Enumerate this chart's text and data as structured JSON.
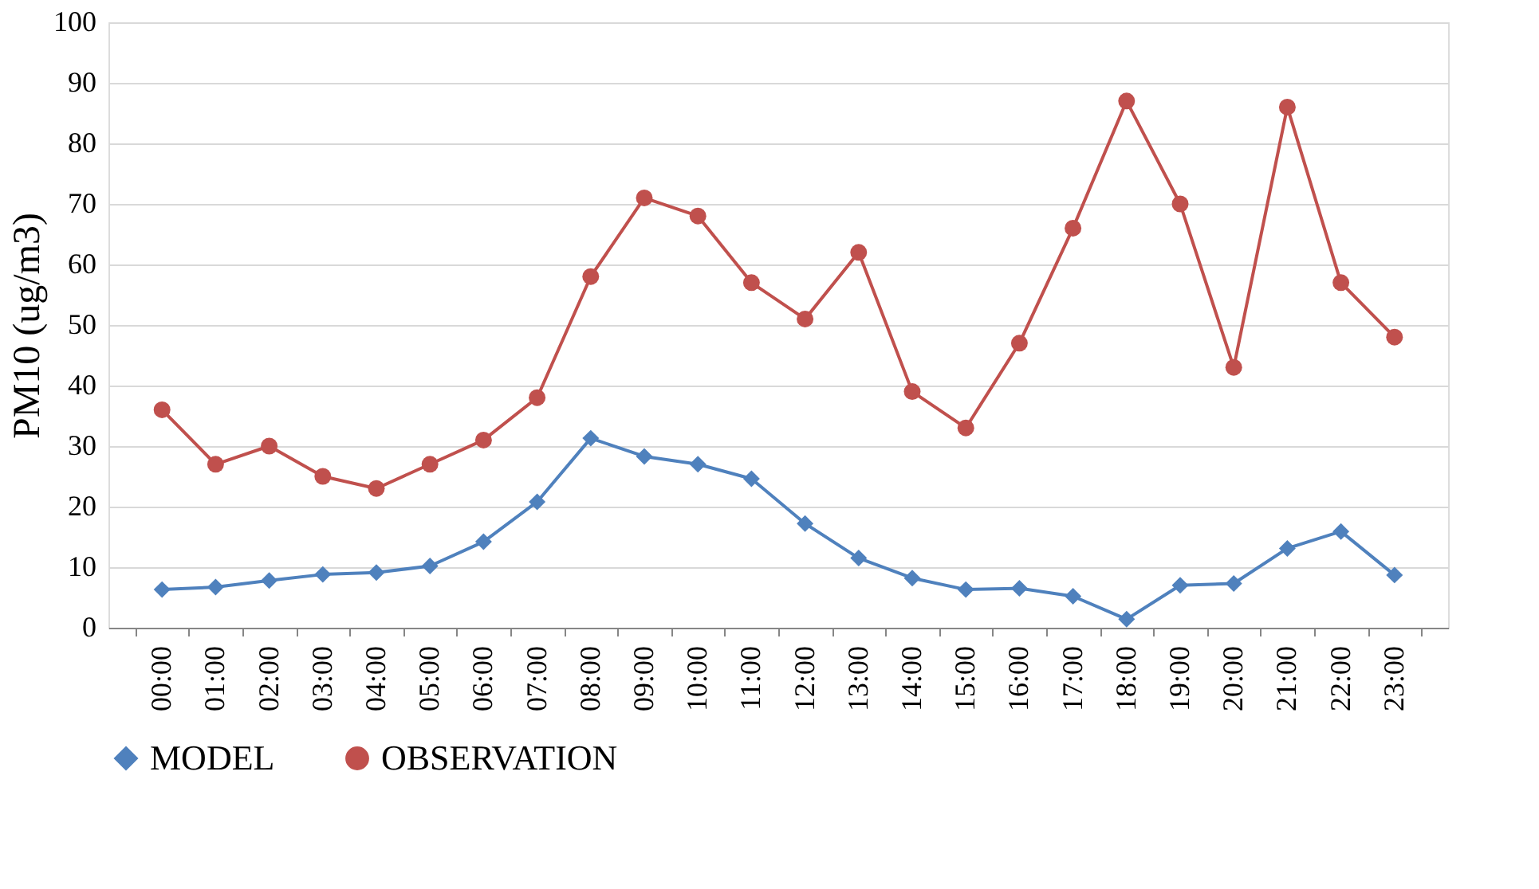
{
  "chart_data": {
    "type": "line",
    "ylabel": "PM10 (ug/m3)",
    "categories": [
      "00:00",
      "01:00",
      "02:00",
      "03:00",
      "04:00",
      "05:00",
      "06:00",
      "07:00",
      "08:00",
      "09:00",
      "10:00",
      "11:00",
      "12:00",
      "13:00",
      "14:00",
      "15:00",
      "16:00",
      "17:00",
      "18:00",
      "19:00",
      "20:00",
      "21:00",
      "22:00",
      "23:00"
    ],
    "series": [
      {
        "name": "MODEL",
        "color": "#4f81bd",
        "marker": "diamond",
        "values": [
          6.3,
          6.7,
          7.8,
          8.8,
          9.1,
          10.2,
          14.2,
          20.8,
          31.3,
          28.3,
          27.0,
          24.6,
          17.2,
          11.5,
          8.2,
          6.3,
          6.5,
          5.2,
          1.4,
          7.0,
          7.3,
          13.1,
          15.9,
          8.7
        ]
      },
      {
        "name": "OBSERVATION",
        "color": "#c0504d",
        "marker": "circle",
        "values": [
          36,
          27,
          30,
          25,
          23,
          27,
          31,
          38,
          58,
          71,
          68,
          57,
          51,
          62,
          39,
          33,
          47,
          66,
          87,
          70,
          43,
          86,
          57,
          48
        ]
      }
    ],
    "ylim": [
      0,
      100
    ],
    "yticks": [
      0,
      10,
      20,
      30,
      40,
      50,
      60,
      70,
      80,
      90,
      100
    ],
    "grid": "y",
    "legend": "bottom",
    "line_style": "solid"
  }
}
